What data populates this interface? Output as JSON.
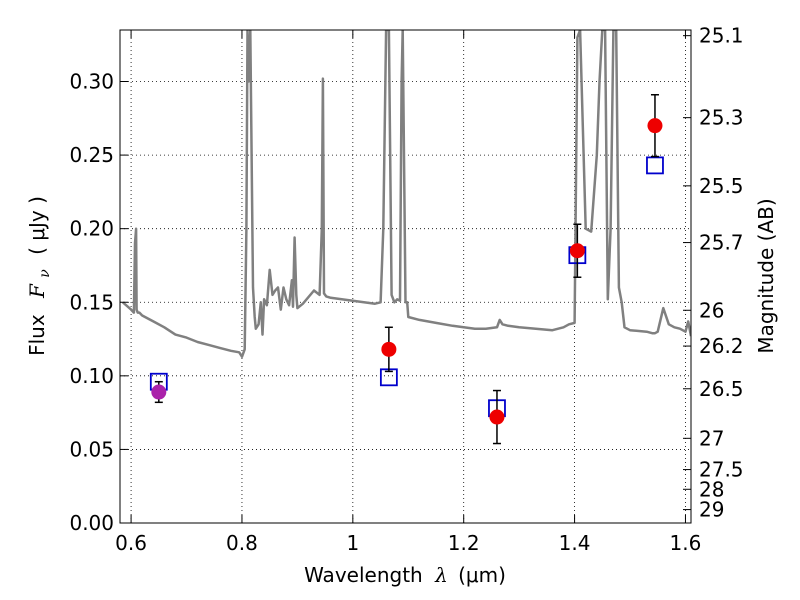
{
  "chart_data": {
    "type": "scatter",
    "xlabel": "Wavelength",
    "xlabel_symbol": "λ",
    "xlabel_unit": "(μm)",
    "ylabel": "Flux",
    "ylabel_symbol": "F",
    "ylabel_subscript": "ν",
    "ylabel_unit": "( μJy )",
    "y2label": "Magnitude (AB)",
    "xlim": [
      0.58,
      1.61
    ],
    "ylim": [
      0.0,
      0.335
    ],
    "grid": true,
    "grid_style": "dotted",
    "x_ticks": [
      0.6,
      0.8,
      1.0,
      1.2,
      1.4,
      1.6
    ],
    "x_tick_labels": [
      "0.6",
      "0.8",
      "1",
      "1.2",
      "1.4",
      "1.6"
    ],
    "y_ticks": [
      0.0,
      0.05,
      0.1,
      0.15,
      0.2,
      0.25,
      0.3
    ],
    "y_tick_labels": [
      "0.00",
      "0.05",
      "0.10",
      "0.15",
      "0.20",
      "0.25",
      "0.30"
    ],
    "y2_tick_labels": [
      "25.1",
      "25.3",
      "25.5",
      "25.7",
      "26",
      "26.2",
      "26.5",
      "27",
      "27.5",
      "28",
      "29"
    ],
    "y2_tick_mags": [
      25.1,
      25.3,
      25.5,
      25.7,
      26.0,
      26.2,
      26.5,
      27.0,
      27.5,
      28.0,
      29.0
    ],
    "colors": {
      "spectrum": "#808080",
      "observed": "#ee0000",
      "observed_special": "#aa22aa",
      "model": "#0000cc",
      "errorbar": "#000000"
    },
    "series": [
      {
        "name": "model spectrum",
        "kind": "line",
        "x": [
          0.585,
          0.6,
          0.605,
          0.607,
          0.609,
          0.61,
          0.612,
          0.615,
          0.62,
          0.64,
          0.66,
          0.68,
          0.7,
          0.72,
          0.74,
          0.76,
          0.78,
          0.795,
          0.8,
          0.805,
          0.808,
          0.81,
          0.812,
          0.815,
          0.82,
          0.823,
          0.825,
          0.83,
          0.834,
          0.837,
          0.84,
          0.845,
          0.85,
          0.855,
          0.86,
          0.865,
          0.87,
          0.875,
          0.88,
          0.885,
          0.89,
          0.892,
          0.895,
          0.898,
          0.9,
          0.91,
          0.93,
          0.94,
          0.944,
          0.946,
          0.948,
          0.952,
          0.96,
          0.98,
          1.0,
          1.02,
          1.04,
          1.05,
          1.055,
          1.06,
          1.065,
          1.07,
          1.075,
          1.08,
          1.085,
          1.088,
          1.09,
          1.095,
          1.098,
          1.1,
          1.12,
          1.15,
          1.18,
          1.2,
          1.22,
          1.24,
          1.26,
          1.265,
          1.27,
          1.28,
          1.3,
          1.33,
          1.36,
          1.38,
          1.39,
          1.4,
          1.405,
          1.41,
          1.42,
          1.43,
          1.44,
          1.445,
          1.45,
          1.455,
          1.46,
          1.465,
          1.47,
          1.475,
          1.48,
          1.485,
          1.49,
          1.5,
          1.53,
          1.54,
          1.545,
          1.55,
          1.56,
          1.57,
          1.58,
          1.59,
          1.6,
          1.605,
          1.61
        ],
        "y": [
          0.15,
          0.145,
          0.143,
          0.19,
          0.2,
          0.145,
          0.143,
          0.143,
          0.141,
          0.137,
          0.133,
          0.128,
          0.126,
          0.123,
          0.121,
          0.119,
          0.117,
          0.116,
          0.113,
          0.118,
          0.2,
          0.335,
          0.3,
          0.335,
          0.16,
          0.14,
          0.132,
          0.135,
          0.15,
          0.128,
          0.152,
          0.148,
          0.172,
          0.155,
          0.158,
          0.16,
          0.145,
          0.16,
          0.152,
          0.148,
          0.165,
          0.147,
          0.194,
          0.155,
          0.146,
          0.149,
          0.158,
          0.155,
          0.2,
          0.302,
          0.156,
          0.154,
          0.153,
          0.152,
          0.151,
          0.15,
          0.149,
          0.15,
          0.2,
          0.335,
          0.335,
          0.155,
          0.15,
          0.152,
          0.151,
          0.3,
          0.335,
          0.15,
          0.15,
          0.14,
          0.138,
          0.136,
          0.134,
          0.133,
          0.132,
          0.132,
          0.133,
          0.138,
          0.135,
          0.134,
          0.133,
          0.132,
          0.131,
          0.133,
          0.135,
          0.136,
          0.33,
          0.335,
          0.2,
          0.198,
          0.25,
          0.3,
          0.335,
          0.335,
          0.152,
          0.2,
          0.335,
          0.335,
          0.16,
          0.15,
          0.133,
          0.131,
          0.13,
          0.129,
          0.129,
          0.13,
          0.146,
          0.135,
          0.133,
          0.132,
          0.13,
          0.137,
          0.127
        ]
      },
      {
        "name": "observed photometry",
        "kind": "points",
        "x": [
          0.65,
          1.065,
          1.26,
          1.405,
          1.545
        ],
        "y": [
          0.089,
          0.118,
          0.072,
          0.185,
          0.27
        ],
        "yerr": [
          0.007,
          0.015,
          0.018,
          0.018,
          0.021
        ]
      },
      {
        "name": "model photometry",
        "kind": "squares",
        "x": [
          0.65,
          1.065,
          1.26,
          1.405,
          1.545
        ],
        "y": [
          0.096,
          0.099,
          0.078,
          0.182,
          0.243
        ]
      }
    ]
  }
}
